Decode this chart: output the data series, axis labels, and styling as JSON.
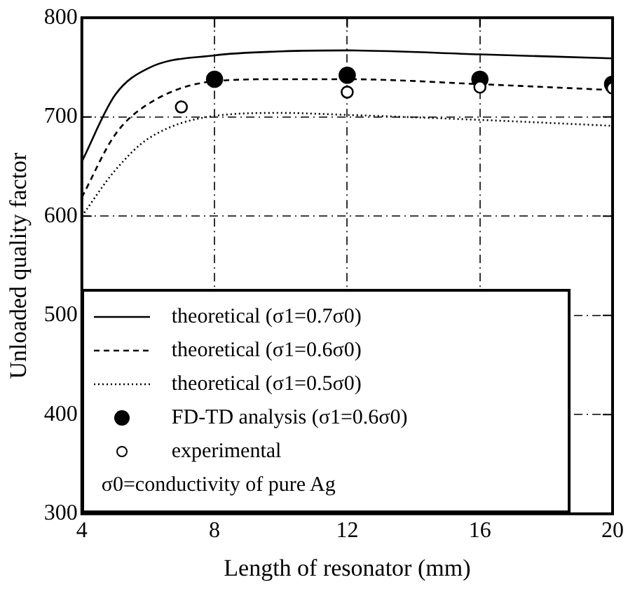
{
  "chart_data": {
    "type": "line",
    "xlabel": "Length of resonator (mm)",
    "ylabel": "Unloaded quality factor",
    "xlim": [
      4,
      20
    ],
    "xticks": [
      4,
      8,
      12,
      16,
      20
    ],
    "ylim": [
      300,
      800
    ],
    "yticks": [
      300,
      400,
      500,
      600,
      700,
      800
    ],
    "grid": true,
    "legend": "bottom",
    "series": [
      {
        "name": "theoretical (σ1=0.7σ0)",
        "color": "#000000",
        "line_style": "solid",
        "marker": "none",
        "x": [
          4,
          5,
          6,
          8,
          10,
          12,
          16,
          20
        ],
        "values": [
          655,
          722,
          749,
          762,
          766,
          767,
          763,
          759
        ]
      },
      {
        "name": "theoretical (σ1=0.6σ0)",
        "color": "#000000",
        "line_style": "dashed",
        "marker": "none",
        "x": [
          4,
          5,
          6,
          8,
          10,
          12,
          16,
          20
        ],
        "values": [
          619,
          682,
          713,
          736,
          738,
          738,
          733,
          727
        ]
      },
      {
        "name": "theoretical (σ1=0.5σ0)",
        "color": "#000000",
        "line_style": "dotted",
        "marker": "none",
        "x": [
          4,
          5,
          6,
          8,
          10,
          12,
          16,
          20
        ],
        "values": [
          600,
          646,
          678,
          701,
          704,
          702,
          697,
          691
        ]
      },
      {
        "name": "FD-TD analysis (σ1=0.6σ0)",
        "type": "scatter",
        "color": "#000000",
        "marker": "circle",
        "x": [
          8,
          12,
          16,
          20
        ],
        "values": [
          738,
          742,
          738,
          733
        ]
      },
      {
        "name": "experimental",
        "type": "scatter",
        "color": "#000000",
        "marker": "circle",
        "x": [
          7,
          12,
          16,
          20
        ],
        "values": [
          710,
          725,
          730,
          729
        ]
      }
    ],
    "annotations": [
      "σ0=conductivity of pure Ag"
    ]
  }
}
